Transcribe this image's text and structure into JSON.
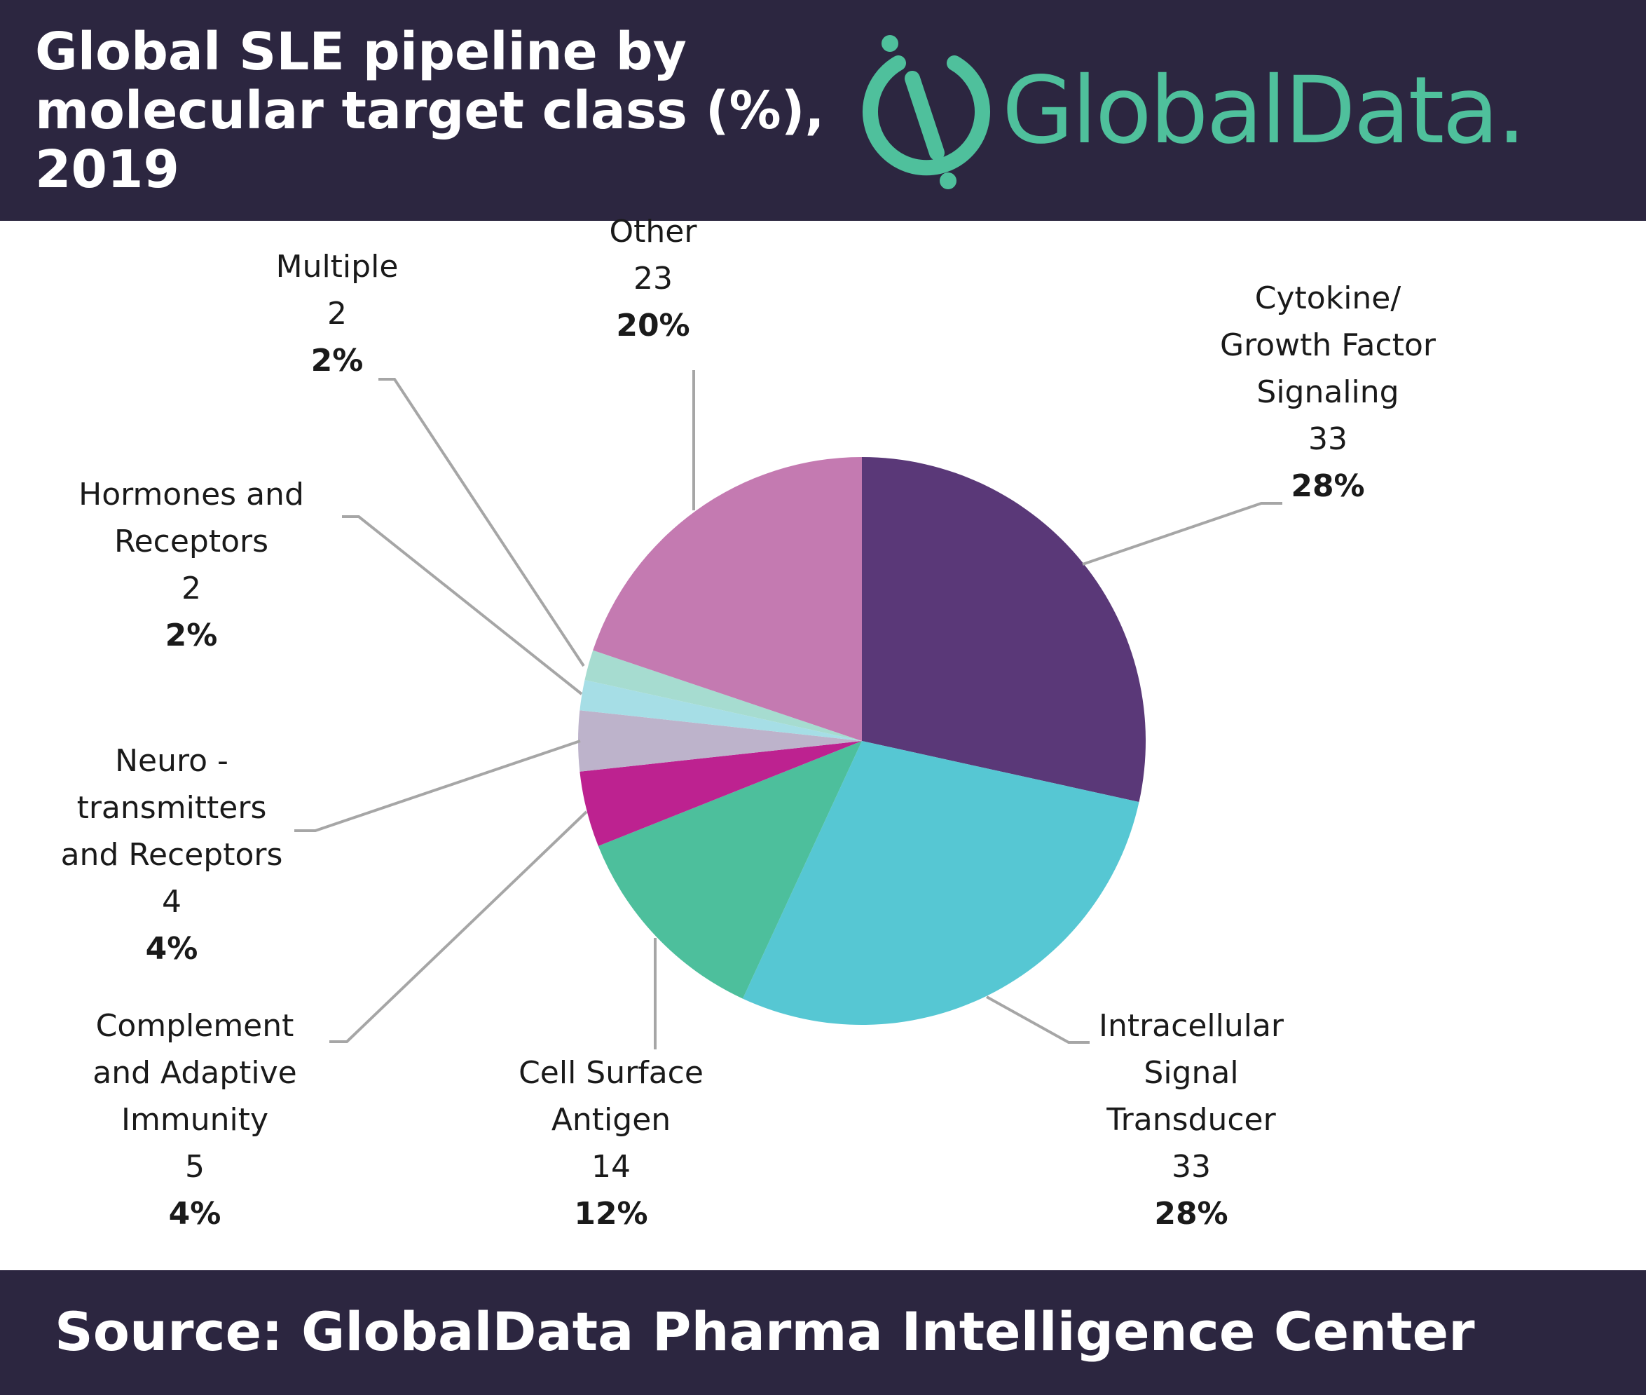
{
  "header": {
    "title_lines": [
      "Global SLE pipeline by",
      "molecular target class (%),",
      "2019"
    ],
    "logo_text": "GlobalData."
  },
  "footer": {
    "source": "Source: GlobalData Pharma Intelligence Center"
  },
  "chart_data": {
    "type": "pie",
    "title": "Global SLE pipeline by molecular target class (%), 2019",
    "slices": [
      {
        "name": "Cytokine/ Growth Factor Signaling",
        "label_lines": [
          "Cytokine/",
          "Growth Factor",
          "Signaling"
        ],
        "count": "33",
        "percent": "28%",
        "value": 33,
        "color": "#5a3878"
      },
      {
        "name": "Intracellular Signal Transducer",
        "label_lines": [
          "Intracellular",
          "Signal",
          "Transducer"
        ],
        "count": "33",
        "percent": "28%",
        "value": 33,
        "color": "#56c7d3"
      },
      {
        "name": "Cell Surface Antigen",
        "label_lines": [
          "Cell Surface",
          "Antigen"
        ],
        "count": "14",
        "percent": "12%",
        "value": 14,
        "color": "#4dbf9c"
      },
      {
        "name": "Complement and Adaptive Immunity",
        "label_lines": [
          "Complement",
          "and Adaptive",
          "Immunity"
        ],
        "count": "5",
        "percent": "4%",
        "value": 5,
        "color": "#bd2290"
      },
      {
        "name": "Neuro - transmitters and Receptors",
        "label_lines": [
          "Neuro  -",
          "transmitters",
          "and Receptors"
        ],
        "count": "4",
        "percent": "4%",
        "value": 4,
        "color": "#bdb3cb"
      },
      {
        "name": "Hormones and Receptors",
        "label_lines": [
          "Hormones and",
          "Receptors"
        ],
        "count": "2",
        "percent": "2%",
        "value": 2,
        "color": "#a6dee6"
      },
      {
        "name": "Multiple",
        "label_lines": [
          "Multiple"
        ],
        "count": "2",
        "percent": "2%",
        "value": 2,
        "color": "#a6dcd0"
      },
      {
        "name": "Other",
        "label_lines": [
          "Other"
        ],
        "count": "23",
        "percent": "20%",
        "value": 23,
        "color": "#c47ab1"
      }
    ]
  }
}
